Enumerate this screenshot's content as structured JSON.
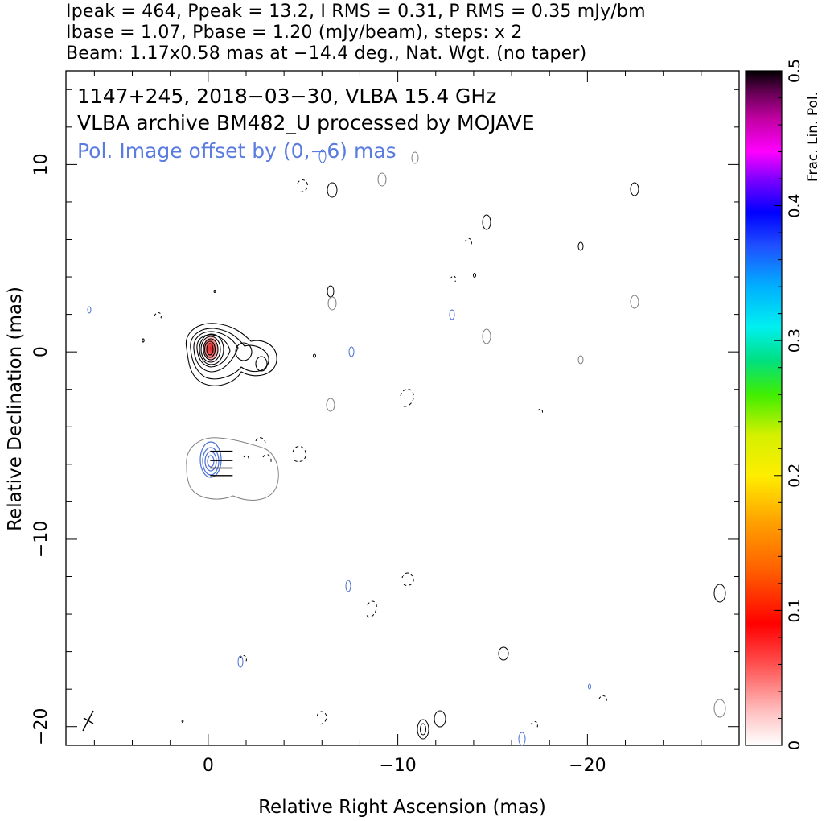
{
  "header": {
    "line1": "Ipeak = 464, Ppeak = 13.2, I RMS = 0.31, P RMS = 0.35 mJy/bm",
    "line2": "Ibase = 1.07, Pbase = 1.20 (mJy/beam), steps: x 2",
    "line3": "Beam: 1.17x0.58 mas at −14.4 deg., Nat. Wgt. (no taper)"
  },
  "plot_text": {
    "source_line": "1147+245, 2018−03−30, VLBA 15.4 GHz",
    "archive_line": "VLBA archive BM482_U processed by MOJAVE",
    "pol_offset_line": "Pol. Image offset by (0,−6) mas"
  },
  "colors": {
    "stokes_i_contours": "#000000",
    "pol_contours": "#4a6fd6",
    "residual_contours": "#808080",
    "pol_label": "#5a7be0"
  },
  "chart_data": {
    "type": "contour",
    "xlabel": "Relative Right Ascension (mas)",
    "ylabel": "Relative Declination (mas)",
    "xlim": [
      7.5,
      -28
    ],
    "ylim": [
      -21,
      15
    ],
    "x_ticks": [
      0,
      -10,
      -20
    ],
    "x_tick_labels": [
      "0",
      "−10",
      "−20"
    ],
    "y_ticks": [
      10,
      0,
      -10,
      -20
    ],
    "y_tick_labels": [
      "10",
      "0",
      "−10",
      "−20"
    ],
    "colorbar": {
      "label": "Frac. Lin. Pol.",
      "range": [
        0,
        0.5
      ],
      "ticks": [
        0,
        0.1,
        0.2,
        0.3,
        0.4,
        0.5
      ],
      "tick_labels": [
        "0",
        "0.1",
        "0.2",
        "0.3",
        "0.4",
        "0.5"
      ]
    },
    "beam": {
      "major_mas": 1.17,
      "minor_mas": 0.58,
      "pa_deg": -14.4
    },
    "peak_stokes_i_mjy_per_beam": 464,
    "peak_pol_mjy_per_beam": 13.2,
    "core_position_mas": [
      0,
      0
    ],
    "pol_image_offset_mas": [
      0,
      -6
    ],
    "contour_base_mjy_per_beam": {
      "stokes_i": 1.07,
      "pol": 1.2
    },
    "contour_step_factor": 2,
    "evpa_vectors_mas": [
      {
        "x": -0.7,
        "y": -5.3
      },
      {
        "x": -0.7,
        "y": -5.8
      },
      {
        "x": -0.7,
        "y": -6.2
      },
      {
        "x": -0.7,
        "y": -6.6
      }
    ],
    "grid": false,
    "legend": "none"
  }
}
